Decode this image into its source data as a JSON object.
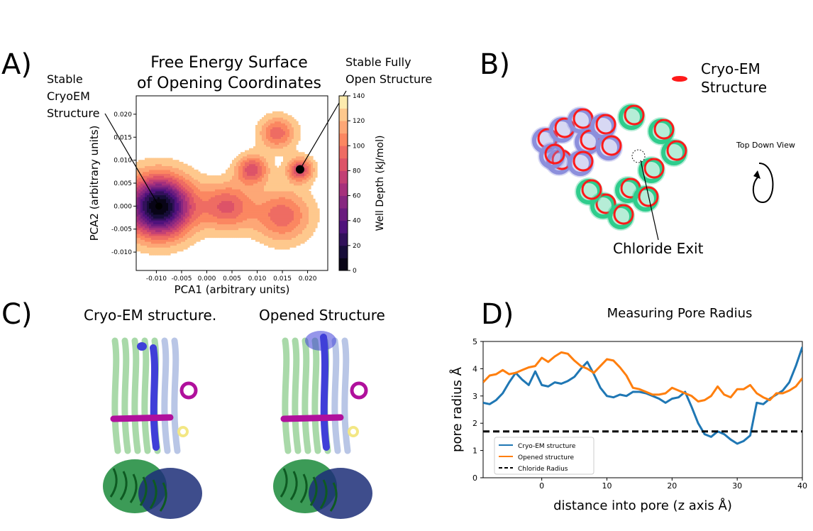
{
  "panels": {
    "a": {
      "letter": "A)",
      "title_line1": "Free Energy Surface",
      "title_line2": "of Opening Coordinates",
      "annot_left_1": "Stable",
      "annot_left_2": "CryoEM",
      "annot_left_3": "Structure",
      "annot_right_1": "Stable Fully",
      "annot_right_2": "Open Structure"
    },
    "b": {
      "letter": "B)",
      "legend_label_1": "Cryo-EM",
      "legend_label_2": "Structure",
      "view_label": "Top Down View",
      "exit_label": "Chloride Exit",
      "colors": {
        "cryoem": "#ff1a1a",
        "chain_a": "#8c8fdc",
        "chain_b": "#2ecc8c"
      }
    },
    "c": {
      "letter": "C)",
      "left_title": "Cryo-EM structure.",
      "right_title": "Opened Structure",
      "colors": {
        "tm_light": "#a9d9a9",
        "tm_blue": "#b9c6e6",
        "core": "#3f3fd8",
        "magenta": "#b0109c",
        "yellow": "#f3e784",
        "green": "#1a8a3a",
        "navy": "#1c2e78"
      }
    },
    "d": {
      "letter": "D)"
    }
  },
  "chart_data": [
    {
      "type": "heatmap",
      "subtype": "filled-contour",
      "xlabel": "PCA1 (arbitrary units)",
      "ylabel": "PCA2 (arbitrary units)",
      "xlim": [
        -0.014,
        0.024
      ],
      "ylim": [
        -0.014,
        0.024
      ],
      "xticks": [
        -0.01,
        -0.005,
        0.0,
        0.005,
        0.01,
        0.015,
        0.02
      ],
      "xtick_labels": [
        "-0.010",
        "-0.005",
        "0.000",
        "0.005",
        "0.010",
        "0.015",
        "0.020"
      ],
      "yticks": [
        -0.01,
        -0.005,
        0.0,
        0.005,
        0.01,
        0.015,
        0.02
      ],
      "ytick_labels": [
        "-0.010",
        "-0.005",
        "0.000",
        "0.005",
        "0.010",
        "0.015",
        "0.020"
      ],
      "colorbar": {
        "label": "Well Depth (kJ/mol)",
        "range": [
          0,
          140
        ],
        "ticks": [
          "0",
          "20",
          "40",
          "60",
          "80",
          "100",
          "120",
          "140"
        ],
        "levels": 14,
        "colormap": "magma"
      },
      "wells": [
        {
          "x": -0.0095,
          "y": 0.0,
          "depth": 140,
          "spread": 0.0045
        },
        {
          "x": 0.0185,
          "y": 0.008,
          "depth": 60,
          "spread": 0.0018
        },
        {
          "x": 0.009,
          "y": 0.008,
          "depth": 55,
          "spread": 0.0022
        },
        {
          "x": 0.014,
          "y": 0.016,
          "depth": 45,
          "spread": 0.0025
        },
        {
          "x": 0.004,
          "y": 0.0,
          "depth": 50,
          "spread": 0.0035
        },
        {
          "x": 0.015,
          "y": -0.002,
          "depth": 45,
          "spread": 0.004
        }
      ],
      "points": [
        {
          "name": "Stable CryoEM Structure",
          "x": -0.0095,
          "y": 0.0
        },
        {
          "name": "Stable Fully Open Structure",
          "x": 0.0185,
          "y": 0.008
        }
      ]
    },
    {
      "type": "line",
      "title": "Measuring Pore Radius",
      "xlabel": "distance into pore (z axis Å)",
      "ylabel": "pore radius Å",
      "xlim": [
        -9,
        40
      ],
      "ylim": [
        0,
        5
      ],
      "xticks": [
        "0",
        "10",
        "20",
        "30",
        "40"
      ],
      "yticks": [
        "0",
        "1",
        "2",
        "3",
        "4",
        "5"
      ],
      "legend_position": "lower-left",
      "series": [
        {
          "name": "Cryo-EM structure",
          "color": "#1f77b4",
          "x": [
            -9,
            -8,
            -7,
            -6,
            -5,
            -4,
            -3,
            -2,
            -1,
            0,
            1,
            2,
            3,
            4,
            5,
            6,
            7,
            8,
            9,
            10,
            11,
            12,
            13,
            14,
            15,
            16,
            17,
            18,
            19,
            20,
            21,
            22,
            23,
            24,
            25,
            26,
            27,
            28,
            29,
            30,
            31,
            32,
            33,
            34,
            35,
            36,
            37,
            38,
            39,
            40
          ],
          "y": [
            2.75,
            2.7,
            2.85,
            3.1,
            3.5,
            3.85,
            3.6,
            3.4,
            3.9,
            3.4,
            3.35,
            3.5,
            3.45,
            3.55,
            3.7,
            4.0,
            4.25,
            3.8,
            3.3,
            3.0,
            2.95,
            3.05,
            3.0,
            3.15,
            3.15,
            3.1,
            3.0,
            2.9,
            2.75,
            2.9,
            2.95,
            3.15,
            2.6,
            2.0,
            1.6,
            1.5,
            1.7,
            1.6,
            1.4,
            1.25,
            1.35,
            1.55,
            2.75,
            2.7,
            2.9,
            3.05,
            3.2,
            3.5,
            4.1,
            4.8
          ]
        },
        {
          "name": "Opened structure",
          "color": "#ff7f0e",
          "x": [
            -9,
            -8,
            -7,
            -6,
            -5,
            -4,
            -3,
            -2,
            -1,
            0,
            1,
            2,
            3,
            4,
            5,
            6,
            7,
            8,
            9,
            10,
            11,
            12,
            13,
            14,
            15,
            16,
            17,
            18,
            19,
            20,
            21,
            22,
            23,
            24,
            25,
            26,
            27,
            28,
            29,
            30,
            31,
            32,
            33,
            34,
            35,
            36,
            37,
            38,
            39,
            40
          ],
          "y": [
            3.5,
            3.75,
            3.8,
            3.95,
            3.8,
            3.85,
            3.95,
            4.05,
            4.1,
            4.4,
            4.25,
            4.45,
            4.6,
            4.55,
            4.3,
            4.1,
            4.0,
            3.85,
            4.1,
            4.35,
            4.3,
            4.05,
            3.75,
            3.3,
            3.25,
            3.15,
            3.05,
            3.05,
            3.1,
            3.3,
            3.2,
            3.1,
            3.0,
            2.8,
            2.85,
            3.0,
            3.35,
            3.05,
            2.95,
            3.25,
            3.25,
            3.4,
            3.1,
            2.95,
            2.85,
            3.1,
            3.1,
            3.2,
            3.35,
            3.65
          ]
        },
        {
          "name": "Chloride Radius",
          "color": "#000000",
          "dashed": true,
          "x": [
            -9,
            40
          ],
          "y": [
            1.7,
            1.7
          ]
        }
      ]
    }
  ]
}
